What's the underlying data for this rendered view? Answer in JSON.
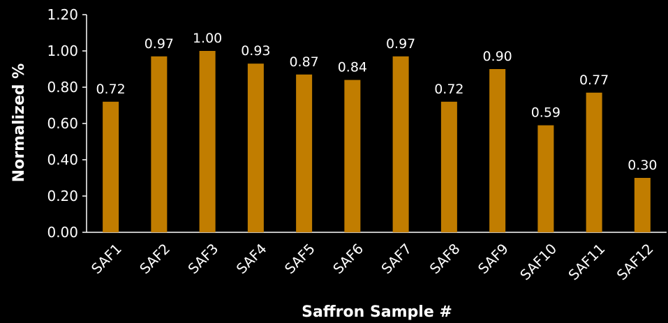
{
  "chart_data": {
    "type": "bar",
    "title": "",
    "xlabel": "Saffron Sample #",
    "ylabel": "Normalized %",
    "categories": [
      "SAF1",
      "SAF2",
      "SAF3",
      "SAF4",
      "SAF5",
      "SAF6",
      "SAF7",
      "SAF8",
      "SAF9",
      "SAF10",
      "SAF11",
      "SAF12"
    ],
    "values": [
      0.72,
      0.97,
      1.0,
      0.93,
      0.87,
      0.84,
      0.97,
      0.72,
      0.9,
      0.59,
      0.77,
      0.3
    ],
    "value_labels": [
      "0.72",
      "0.97",
      "1.00",
      "0.93",
      "0.87",
      "0.84",
      "0.97",
      "0.72",
      "0.90",
      "0.59",
      "0.77",
      "0.30"
    ],
    "ylim": [
      0,
      1.2
    ],
    "yticks": [
      0.0,
      0.2,
      0.4,
      0.6,
      0.8,
      1.0,
      1.2
    ],
    "ytick_labels": [
      "0.00",
      "0.20",
      "0.40",
      "0.60",
      "0.80",
      "1.00",
      "1.20"
    ],
    "grid": false,
    "legend": "none",
    "colors": {
      "bar": "#c17d00",
      "background": "#000000",
      "text": "#ffffff",
      "axis": "#ffffff"
    }
  }
}
